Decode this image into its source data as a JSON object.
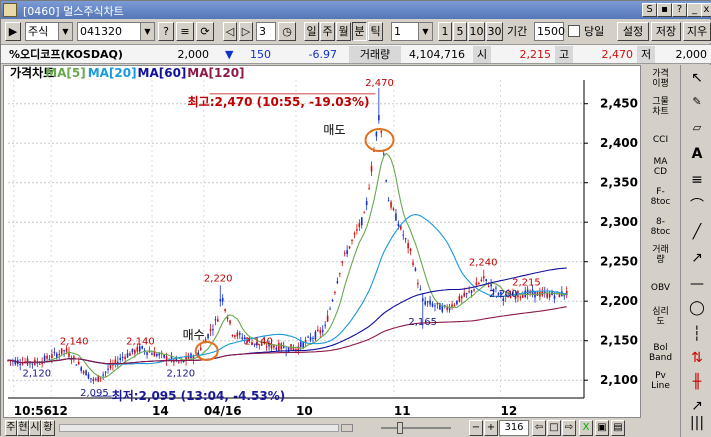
{
  "window": {
    "title": "[0460] 멀스주식차트"
  },
  "toolbar": {
    "market_label": "주식",
    "code_value": "041320",
    "count_value": "3",
    "period_buttons": [
      "일",
      "주",
      "월",
      "분",
      "틱"
    ],
    "interval_value": "1",
    "num_buttons": [
      "1",
      "5",
      "10",
      "30"
    ],
    "range_label": "기간",
    "range_value": "1500",
    "today_label": "당일",
    "settings_label": "설정",
    "save_label": "저장",
    "clear_label": "지우기"
  },
  "quote": {
    "name": "%오디코프(KOSDAQ)",
    "price": "2,000",
    "change": "150",
    "change_arrow": "▼",
    "change_pct": "-6.97",
    "volume_label": "거래량",
    "volume_value": "4,104,716",
    "open_label": "시",
    "open_value": "2,215",
    "high_label": "고",
    "high_value": "2,470",
    "low_label": "저",
    "low_value": "2,000"
  },
  "chart_data": {
    "type": "candlestick",
    "legend": [
      {
        "label": "가격차트",
        "color": "#000000"
      },
      {
        "label": "MA[5]",
        "color": "#6aa84f"
      },
      {
        "label": "MA[20]",
        "color": "#1a9ad9"
      },
      {
        "label": "MA[60]",
        "color": "#111199"
      },
      {
        "label": "MA[120]",
        "color": "#8b1a4a"
      }
    ],
    "ylim": [
      2080,
      2480
    ],
    "yticks": [
      2100,
      2150,
      2200,
      2250,
      2300,
      2350,
      2400,
      2450
    ],
    "xticks": [
      "10:56",
      "12",
      "14",
      "04/16",
      "10",
      "11",
      "12"
    ],
    "annotations": {
      "high": "최고:2,470 (10:55, -19.03%)",
      "low": "최저:2,095 (13:04, -4.53%)",
      "sell": "매도",
      "buy": "매수"
    },
    "price_labels": [
      {
        "text": "2,120",
        "x": 0.05,
        "v": 2120
      },
      {
        "text": "2,140",
        "x": 0.115,
        "v": 2140
      },
      {
        "text": "2,095",
        "x": 0.15,
        "v": 2095
      },
      {
        "text": "2,140",
        "x": 0.23,
        "v": 2140
      },
      {
        "text": "2,120",
        "x": 0.3,
        "v": 2120
      },
      {
        "text": "2,220",
        "x": 0.365,
        "v": 2220
      },
      {
        "text": "2,140",
        "x": 0.435,
        "v": 2140
      },
      {
        "text": "2,470",
        "x": 0.645,
        "v": 2470
      },
      {
        "text": "2,165",
        "x": 0.72,
        "v": 2165
      },
      {
        "text": "2,240",
        "x": 0.825,
        "v": 2240
      },
      {
        "text": "2,200",
        "x": 0.86,
        "v": 2200
      },
      {
        "text": "2,215",
        "x": 0.9,
        "v": 2215
      }
    ]
  },
  "sidebar": {
    "items": [
      "가격\n이평",
      "그물\n차트",
      "CCI",
      "MA\nCD",
      "F-\n8toc",
      "8-\n8toc",
      "거래\n량",
      "OBV",
      "심리\n도",
      "Bol\nBand",
      "Pv\nLine"
    ]
  },
  "bottom": {
    "buttons": [
      "주",
      "현",
      "시",
      "황"
    ],
    "count": "316"
  }
}
